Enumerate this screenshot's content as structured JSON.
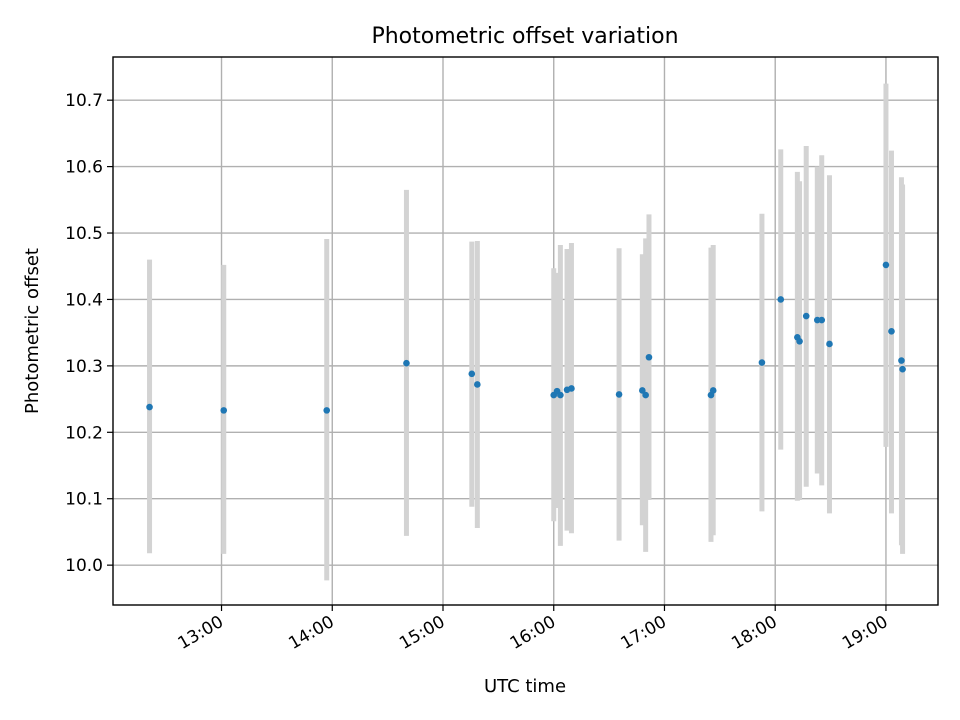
{
  "chart_data": {
    "type": "scatter",
    "title": "Photometric offset variation",
    "xlabel": "UTC time",
    "ylabel": "Photometric offset",
    "x_tick_labels": [
      "13:00",
      "14:00",
      "15:00",
      "16:00",
      "17:00",
      "18:00",
      "19:00"
    ],
    "x_tick_hours": [
      13,
      14,
      15,
      16,
      17,
      18,
      19
    ],
    "xlim_hours": [
      12.02,
      19.47
    ],
    "y_ticks": [
      10.0,
      10.1,
      10.2,
      10.3,
      10.4,
      10.5,
      10.6,
      10.7
    ],
    "y_tick_labels": [
      "10.0",
      "10.1",
      "10.2",
      "10.3",
      "10.4",
      "10.5",
      "10.6",
      "10.7"
    ],
    "ylim": [
      9.94,
      10.765
    ],
    "grid": true,
    "point_color": "#1f77b4",
    "errorbar_color": "#d3d3d3",
    "series": [
      {
        "points": [
          {
            "t": 12.35,
            "y": 10.238,
            "lo": 10.018,
            "hi": 10.46
          },
          {
            "t": 13.02,
            "y": 10.233,
            "lo": 10.017,
            "hi": 10.452
          },
          {
            "t": 13.95,
            "y": 10.233,
            "lo": 9.977,
            "hi": 10.491
          },
          {
            "t": 14.67,
            "y": 10.304,
            "lo": 10.044,
            "hi": 10.565
          },
          {
            "t": 15.26,
            "y": 10.288,
            "lo": 10.088,
            "hi": 10.487
          },
          {
            "t": 15.31,
            "y": 10.272,
            "lo": 10.056,
            "hi": 10.488
          },
          {
            "t": 16.0,
            "y": 10.256,
            "lo": 10.066,
            "hi": 10.447
          },
          {
            "t": 16.03,
            "y": 10.262,
            "lo": 10.086,
            "hi": 10.44
          },
          {
            "t": 16.06,
            "y": 10.256,
            "lo": 10.029,
            "hi": 10.482
          },
          {
            "t": 16.12,
            "y": 10.264,
            "lo": 10.052,
            "hi": 10.476
          },
          {
            "t": 16.16,
            "y": 10.266,
            "lo": 10.048,
            "hi": 10.485
          },
          {
            "t": 16.59,
            "y": 10.257,
            "lo": 10.037,
            "hi": 10.477
          },
          {
            "t": 16.8,
            "y": 10.263,
            "lo": 10.06,
            "hi": 10.468
          },
          {
            "t": 16.83,
            "y": 10.256,
            "lo": 10.02,
            "hi": 10.492
          },
          {
            "t": 16.86,
            "y": 10.313,
            "lo": 10.098,
            "hi": 10.528
          },
          {
            "t": 17.42,
            "y": 10.256,
            "lo": 10.035,
            "hi": 10.478
          },
          {
            "t": 17.44,
            "y": 10.263,
            "lo": 10.045,
            "hi": 10.482
          },
          {
            "t": 17.88,
            "y": 10.305,
            "lo": 10.081,
            "hi": 10.529
          },
          {
            "t": 18.05,
            "y": 10.4,
            "lo": 10.174,
            "hi": 10.626
          },
          {
            "t": 18.2,
            "y": 10.343,
            "lo": 10.097,
            "hi": 10.592
          },
          {
            "t": 18.22,
            "y": 10.337,
            "lo": 10.098,
            "hi": 10.578
          },
          {
            "t": 18.28,
            "y": 10.375,
            "lo": 10.118,
            "hi": 10.631
          },
          {
            "t": 18.38,
            "y": 10.369,
            "lo": 10.138,
            "hi": 10.6
          },
          {
            "t": 18.42,
            "y": 10.369,
            "lo": 10.12,
            "hi": 10.617
          },
          {
            "t": 18.49,
            "y": 10.333,
            "lo": 10.078,
            "hi": 10.587
          },
          {
            "t": 19.0,
            "y": 10.452,
            "lo": 10.178,
            "hi": 10.725
          },
          {
            "t": 19.05,
            "y": 10.352,
            "lo": 10.078,
            "hi": 10.624
          },
          {
            "t": 19.14,
            "y": 10.308,
            "lo": 10.03,
            "hi": 10.584
          },
          {
            "t": 19.15,
            "y": 10.295,
            "lo": 10.017,
            "hi": 10.573
          }
        ]
      }
    ]
  }
}
